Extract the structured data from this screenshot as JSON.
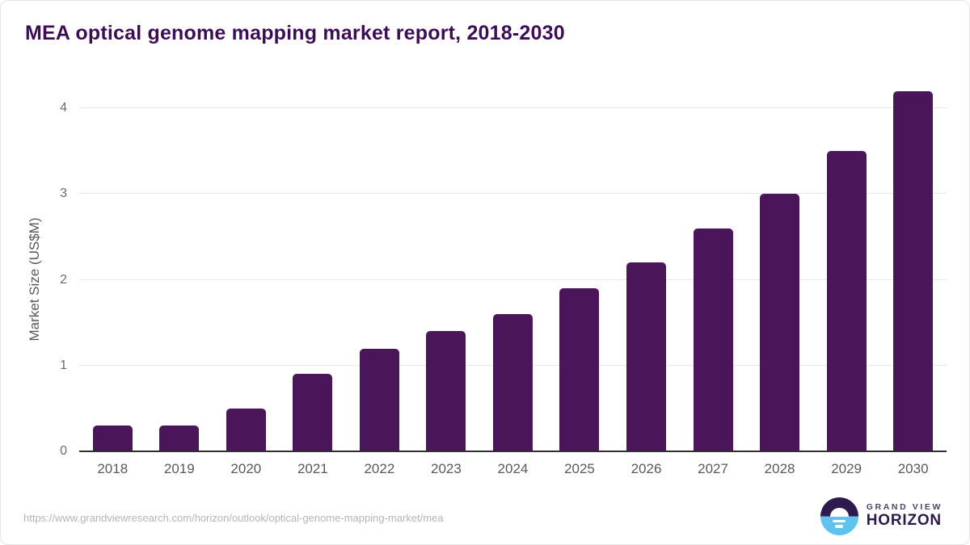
{
  "chart": {
    "title": "MEA optical genome mapping market report, 2018-2030",
    "ylabel": "Market Size (US$M)"
  },
  "chart_data": {
    "type": "bar",
    "title": "MEA optical genome mapping market report, 2018-2030",
    "categories": [
      "2018",
      "2019",
      "2020",
      "2021",
      "2022",
      "2023",
      "2024",
      "2025",
      "2026",
      "2027",
      "2028",
      "2029",
      "2030"
    ],
    "values": [
      0.3,
      0.3,
      0.5,
      0.9,
      1.2,
      1.4,
      1.6,
      1.9,
      2.2,
      2.6,
      3.0,
      3.5,
      4.2
    ],
    "xlabel": "",
    "ylabel": "Market Size (US$M)",
    "ylim": [
      0,
      4
    ],
    "yticks": [
      0,
      1,
      2,
      3,
      4
    ],
    "grid": true,
    "legend": false,
    "bar_color": "#4a1559"
  },
  "footer": {
    "source_url": "https://www.grandviewresearch.com/horizon/outlook/optical-genome-mapping-market/mea",
    "logo": {
      "line1": "GRAND VIEW",
      "line2": "HORIZON"
    }
  },
  "colors": {
    "bar": "#4a1559",
    "title": "#3c0e56",
    "gridline": "#e7e7e7",
    "axis_line": "#2f2f2f",
    "tick_text": "#595959",
    "url_text": "#b5b5b5",
    "logo_purple": "#2d1a4e",
    "logo_blue": "#5fc3ef"
  }
}
